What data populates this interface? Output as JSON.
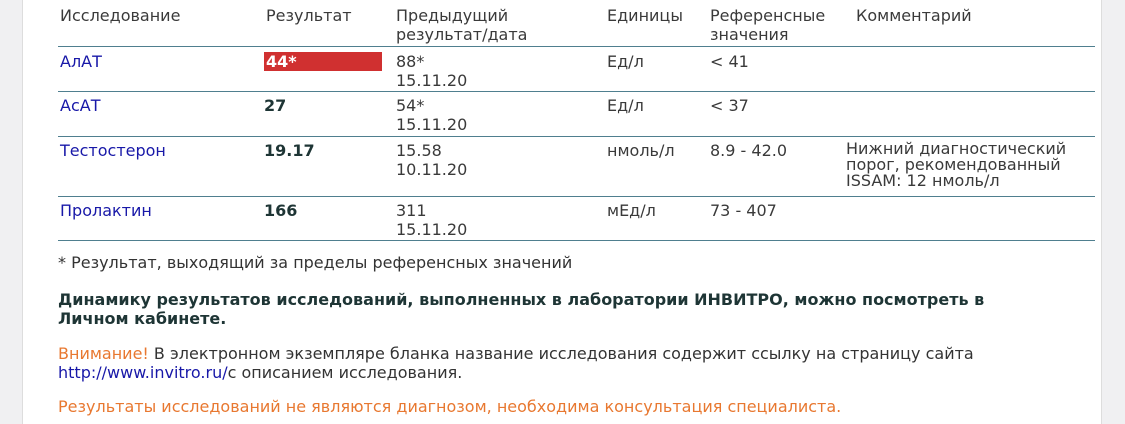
{
  "headers": {
    "test": "Исследование",
    "result": "Результат",
    "prev1": "Предыдущий",
    "prev2": "результат/дата",
    "units": "Единицы",
    "ref1": "Референсные",
    "ref2": "значения",
    "comment": "Комментарий"
  },
  "rows": [
    {
      "test": "АлАТ",
      "result": "44*",
      "flagged": true,
      "prev": "88*",
      "prev_date": "15.11.20",
      "units": "Ед/л",
      "ref": "< 41",
      "comment": [
        "",
        "",
        ""
      ]
    },
    {
      "test": "АсАТ",
      "result": "27",
      "flagged": false,
      "prev": "54*",
      "prev_date": "15.11.20",
      "units": "Ед/л",
      "ref": "< 37",
      "comment": [
        "",
        "",
        ""
      ]
    },
    {
      "test": "Тестостерон",
      "result": "19.17",
      "flagged": false,
      "prev": "15.58",
      "prev_date": "10.11.20",
      "units": "нмоль/л",
      "ref": "8.9 - 42.0",
      "comment": [
        "Нижний диагностический",
        "порог, рекомендованный",
        "ISSAM: 12 нмоль/л"
      ]
    },
    {
      "test": "Пролактин",
      "result": "166",
      "flagged": false,
      "prev": "311",
      "prev_date": "15.11.20",
      "units": "мЕд/л",
      "ref": "73 - 407",
      "comment": [
        "",
        "",
        ""
      ]
    }
  ],
  "footnote": "* Результат, выходящий за пределы референсных значений",
  "dynamics": "Динамику результатов исследований, выполненных в лаборатории ИНВИТРО, можно посмотреть в Личном кабинете.",
  "warning_label": "Внимание!",
  "warning_text": " В электронном экземпляре бланка название исследования содержит ссылку на страницу сайта ",
  "warning_link": "http://www.invitro.ru/",
  "warning_tail": "с описанием исследования.",
  "disclaimer": "Результаты исследований не являются диагнозом, необходима консультация специалиста.",
  "colors": {
    "flag": "#d03030",
    "link": "#1818a8",
    "warning": "#e87830"
  }
}
